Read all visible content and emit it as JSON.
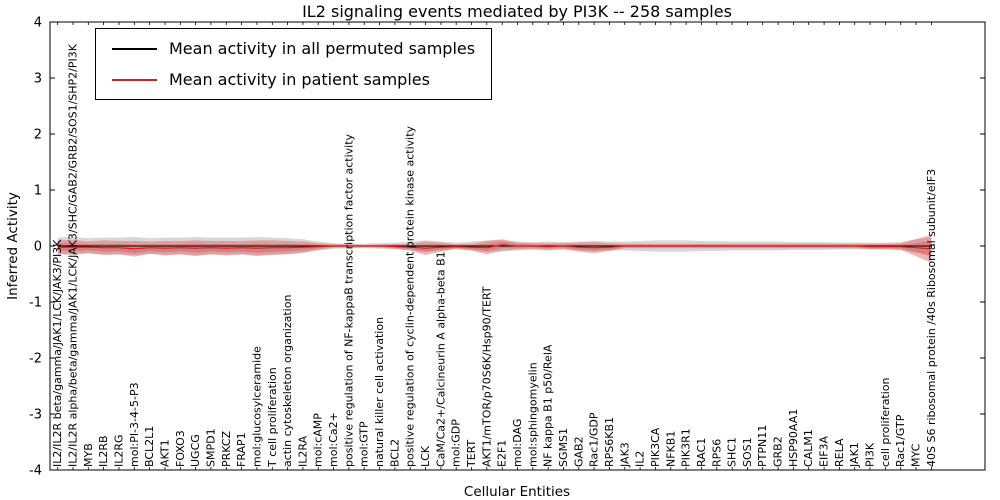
{
  "colors": {
    "permuted_line": "#000000",
    "patient_line": "#cc2222",
    "patient_band": "#e06a6a",
    "permuted_band": "#bdbdbd",
    "frame": "#000000"
  },
  "chart_data": {
    "type": "line",
    "title": "IL2 signaling events mediated by PI3K -- 258 samples",
    "xlabel": "Cellular Entities",
    "ylabel": "Inferred Activity",
    "ylim": [
      -4,
      4
    ],
    "yticks": [
      4,
      3,
      2,
      1,
      0,
      -1,
      -2,
      -3,
      -4
    ],
    "grid": false,
    "legend_position": "upper left",
    "sample_count": "258",
    "categories": [
      "IL2/IL2R beta/gamma/JAK1/LCK/JAK3/PI3K",
      "IL2/IL2R alpha/beta/gamma/JAK1/LCK/JAK3/SHC/GAB2/GRB2/SOS1/SHP2/PI3K",
      "MYB",
      "IL2RB",
      "IL2RG",
      "mol:PI-3-4-5-P3",
      "BCL2L1",
      "AKT1",
      "FOXO3",
      "UGCG",
      "SMPD1",
      "PRKCZ",
      "FRAP1",
      "mol:glucosylceramide",
      "T cell proliferation",
      "actin cytoskeleton organization",
      "IL2RA",
      "mol:cAMP",
      "mol:Ca2+",
      "positive regulation of NF-kappaB transcription factor activity",
      "mol:GTP",
      "natural killer cell activation",
      "BCL2",
      "positive regulation of cyclin-dependent protein kinase activity",
      "LCK",
      "CaM/Ca2+/Calcineurin A alpha-beta B1",
      "mol:GDP",
      "TERT",
      "AKT1/mTOR/p70S6K/Hsp90/TERT",
      "E2F1",
      "mol:DAG",
      "mol:sphingomyelin",
      "NF kappa B1 p50/RelA",
      "SGMS1",
      "GAB2",
      "Rac1/GDP",
      "RPS6KB1",
      "JAK3",
      "IL2",
      "PIK3CA",
      "NFKB1",
      "PIK3R1",
      "RAC1",
      "RPS6",
      "SHC1",
      "SOS1",
      "PTPN11",
      "GRB2",
      "HSP90AA1",
      "CALM1",
      "EIF3A",
      "RELA",
      "JAK1",
      "PI3K",
      "cell proliferation",
      "Rac1/GTP",
      "MYC",
      "40S S6 ribosomal protein /40s Ribosomal subunit/eIF3"
    ],
    "series": [
      {
        "name": "Mean activity in all permuted samples",
        "color": "#000000",
        "values": [
          0,
          0,
          0,
          0,
          0,
          0,
          0,
          0,
          0,
          0,
          0,
          0,
          0,
          0,
          0,
          0,
          0,
          0,
          0,
          0,
          0,
          0,
          0,
          0,
          0,
          0,
          0,
          0,
          0,
          0,
          0,
          0,
          0,
          0,
          0,
          0,
          0,
          0,
          0,
          0,
          0,
          0,
          0,
          0,
          0,
          0,
          0,
          0,
          0,
          0,
          0,
          0,
          0,
          0,
          0,
          0,
          0,
          0
        ]
      },
      {
        "name": "Mean activity in patient samples",
        "color": "#cc2222",
        "values": [
          -0.02,
          -0.02,
          -0.02,
          -0.03,
          -0.03,
          -0.05,
          -0.03,
          -0.04,
          -0.03,
          -0.04,
          -0.03,
          -0.04,
          -0.03,
          -0.04,
          -0.03,
          -0.03,
          -0.02,
          -0.01,
          0,
          0,
          0,
          0,
          -0.01,
          -0.02,
          -0.04,
          -0.02,
          -0.01,
          -0.02,
          -0.03,
          0.02,
          0,
          0,
          -0.01,
          0,
          -0.02,
          -0.03,
          -0.02,
          0,
          0,
          0,
          0,
          0,
          0,
          0,
          0,
          0,
          0,
          0,
          0,
          0,
          0,
          0,
          0,
          -0.01,
          -0.01,
          -0.01,
          -0.03,
          -0.05
        ]
      }
    ],
    "patient_band_halfwidth": [
      0.12,
      0.13,
      0.1,
      0.13,
      0.12,
      0.14,
      0.11,
      0.13,
      0.12,
      0.14,
      0.12,
      0.13,
      0.12,
      0.14,
      0.13,
      0.12,
      0.1,
      0.06,
      0.03,
      0.03,
      0.02,
      0.03,
      0.04,
      0.06,
      0.12,
      0.08,
      0.04,
      0.06,
      0.12,
      0.1,
      0.06,
      0.05,
      0.06,
      0.05,
      0.08,
      0.1,
      0.07,
      0.04,
      0.04,
      0.04,
      0.04,
      0.04,
      0.04,
      0.04,
      0.04,
      0.04,
      0.04,
      0.04,
      0.04,
      0.04,
      0.04,
      0.04,
      0.04,
      0.05,
      0.05,
      0.06,
      0.15,
      0.25
    ],
    "permuted_band_halfwidth": [
      0.15,
      0.16,
      0.14,
      0.15,
      0.15,
      0.16,
      0.14,
      0.15,
      0.15,
      0.16,
      0.15,
      0.15,
      0.15,
      0.16,
      0.15,
      0.14,
      0.12,
      0.08,
      0.05,
      0.04,
      0.04,
      0.05,
      0.06,
      0.08,
      0.1,
      0.08,
      0.06,
      0.08,
      0.1,
      0.1,
      0.08,
      0.07,
      0.08,
      0.07,
      0.08,
      0.09,
      0.08,
      0.08,
      0.09,
      0.1,
      0.1,
      0.1,
      0.09,
      0.09,
      0.08,
      0.08,
      0.08,
      0.08,
      0.07,
      0.07,
      0.07,
      0.06,
      0.06,
      0.06,
      0.06,
      0.07,
      0.12,
      0.15
    ]
  }
}
